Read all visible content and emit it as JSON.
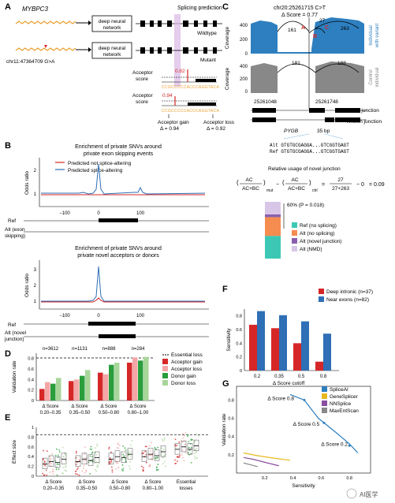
{
  "panels": {
    "A": "A",
    "B": "B",
    "C": "C",
    "D": "D",
    "E": "E",
    "F": "F",
    "G": "G"
  },
  "panelA": {
    "gene": "MYBPC3",
    "variant": "chr11:47364709 G>A",
    "dnn": "deep neural",
    "dnn2": "network",
    "splicing_prediction": "Splicing prediction",
    "wildtype": "Wildtype",
    "mutant": "Mutant",
    "acceptor_score": "Acceptor",
    "acceptor_score2": "score",
    "score_mut": "0.82",
    "score_wt": "0.94",
    "seq1": "CCGCCCCCACCCAGGTACA",
    "seq2": "CCGCCCCCACCCAGGTACA",
    "gain_label": "Acceptor gain",
    "gain_val": "Δ = 0.94",
    "loss_label": "Acceptor loss",
    "loss_val": "Δ = 0.92"
  },
  "panelB": {
    "title1": "Enrichment of private SNVs around",
    "title1b": "private exon skipping events",
    "title2": "Enrichment of private SNVs around",
    "title2b": "private novel acceptors or donors",
    "legend": [
      "Predicted not splice-altering",
      "Predicted splice-altering"
    ],
    "ylabel": "Odds ratio",
    "ref": "Ref",
    "alt1": "Alt (exon",
    "alt1b": "skipping)",
    "alt2": "Alt (novel",
    "alt2b": "junction)",
    "ticks_y1": [
      "1",
      "2"
    ],
    "ticks_y2": [
      "1",
      "2",
      "3"
    ],
    "ticks_x": [
      "−100",
      "0",
      "100"
    ]
  },
  "panelC": {
    "title": "chr20:25261715 C>T",
    "delta": "Δ Score = 0.77",
    "ylabel": "Coverage",
    "ticks": [
      "400",
      "200",
      "0"
    ],
    "top_vals": [
      "161",
      "27",
      "263"
    ],
    "letters": [
      "A",
      "B",
      "C"
    ],
    "side1": "Individual",
    "side1b": "with variant",
    "bot_vals": [
      "181",
      "188"
    ],
    "side2": "Control",
    "side2b": "individual",
    "coord1": "25261048",
    "coord2": "25261748",
    "novel": "Novel junction",
    "known": "Known junction",
    "gene": "PYGB",
    "bp": "35 bp",
    "alt_seq": "Alt GTGTGCGAGGA...GTCGGTGAGT",
    "ref_seq": "Ref GTGTGCGAGGA...GTCGGTGAGT",
    "rel_title": "Relative usage of novel junction",
    "eq_mut": "mut",
    "eq_ctrl": "ctrl",
    "eq_num": "27",
    "eq_den": "27+263",
    "eq_res": "= 0.09",
    "pct": "60% (P = 0.018)",
    "stack_legend": [
      "Ref (no splicing)",
      "Alt (no splicing)",
      "Alt (novel junction)",
      "Alt (NMD)"
    ],
    "stack_colors": [
      "#3cc8b4",
      "#f58c50",
      "#8a5fb0",
      "#d8c6e8"
    ]
  },
  "panelD": {
    "ns": [
      "n=3612",
      "n=1131",
      "n=888",
      "n=284"
    ],
    "ylabel": "Validation rate",
    "yticks": [
      "0",
      "0.2",
      "0.4",
      "0.6",
      "0.8"
    ],
    "xlabels": [
      "Δ Score",
      "Δ Score",
      "Δ Score",
      "Δ Score"
    ],
    "xranges": [
      "0.20–0.35",
      "0.35–0.50",
      "0.50–0.80",
      "0.80–1.00"
    ],
    "legend": [
      "Essential loss",
      "Acceptor gain",
      "Acceptor loss",
      "Donor gain",
      "Donor loss"
    ],
    "colors": [
      "#d62728",
      "#f4a6a6",
      "#2a9d3c",
      "#a8d69a"
    ],
    "values": [
      [
        0.22,
        0.35,
        0.32,
        0.43
      ],
      [
        0.37,
        0.4,
        0.47,
        0.58
      ],
      [
        0.53,
        0.5,
        0.68,
        0.72
      ],
      [
        0.72,
        0.82,
        0.76,
        0.83
      ]
    ],
    "essential": 0.81
  },
  "panelE": {
    "ylabel": "Effect size",
    "yticks": [
      "0",
      "0.2",
      "0.4",
      "0.6",
      "0.8",
      "1"
    ],
    "xranges": [
      "0.20–0.35",
      "0.35–0.50",
      "0.50–0.80",
      "0.80–1.00"
    ],
    "xlabels": [
      "Δ Score",
      "Δ Score",
      "Δ Score",
      "Δ Score"
    ],
    "essential": "Essential",
    "essential2": "losses"
  },
  "panelF": {
    "legend": [
      "Deep intronic (n=37)",
      "Near exons (n=82)"
    ],
    "colors": [
      "#d62728",
      "#2e6fb5"
    ],
    "ylabel": "Sensitivity",
    "yticks": [
      "0",
      "0.2",
      "0.4",
      "0.6",
      "0.8"
    ],
    "xlabel": "Δ Score cutoff",
    "categories": [
      "0.2",
      "0.35",
      "0.5",
      "0.8"
    ],
    "deep": [
      0.67,
      0.62,
      0.4,
      0.13
    ],
    "near": [
      0.87,
      0.81,
      0.72,
      0.54
    ]
  },
  "panelG": {
    "legend": [
      "SpliceAI",
      "GeneSplicer",
      "NNSplice",
      "MaxEntScan"
    ],
    "colors": [
      "#2e7fbf",
      "#e8b820",
      "#8a4fa0",
      "#888888"
    ],
    "ylabel": "Validation rate",
    "xlabel": "Sensitivity",
    "xticks": [
      "0.2",
      "0.4",
      "0.6",
      "0.8"
    ],
    "yticks": [
      "0.2",
      "0.4",
      "0.6",
      "0.8"
    ],
    "ann": [
      "Δ Score 0.8",
      "Δ Score 0.5",
      "Δ Score 0.2"
    ]
  },
  "watermark": "AI医学"
}
